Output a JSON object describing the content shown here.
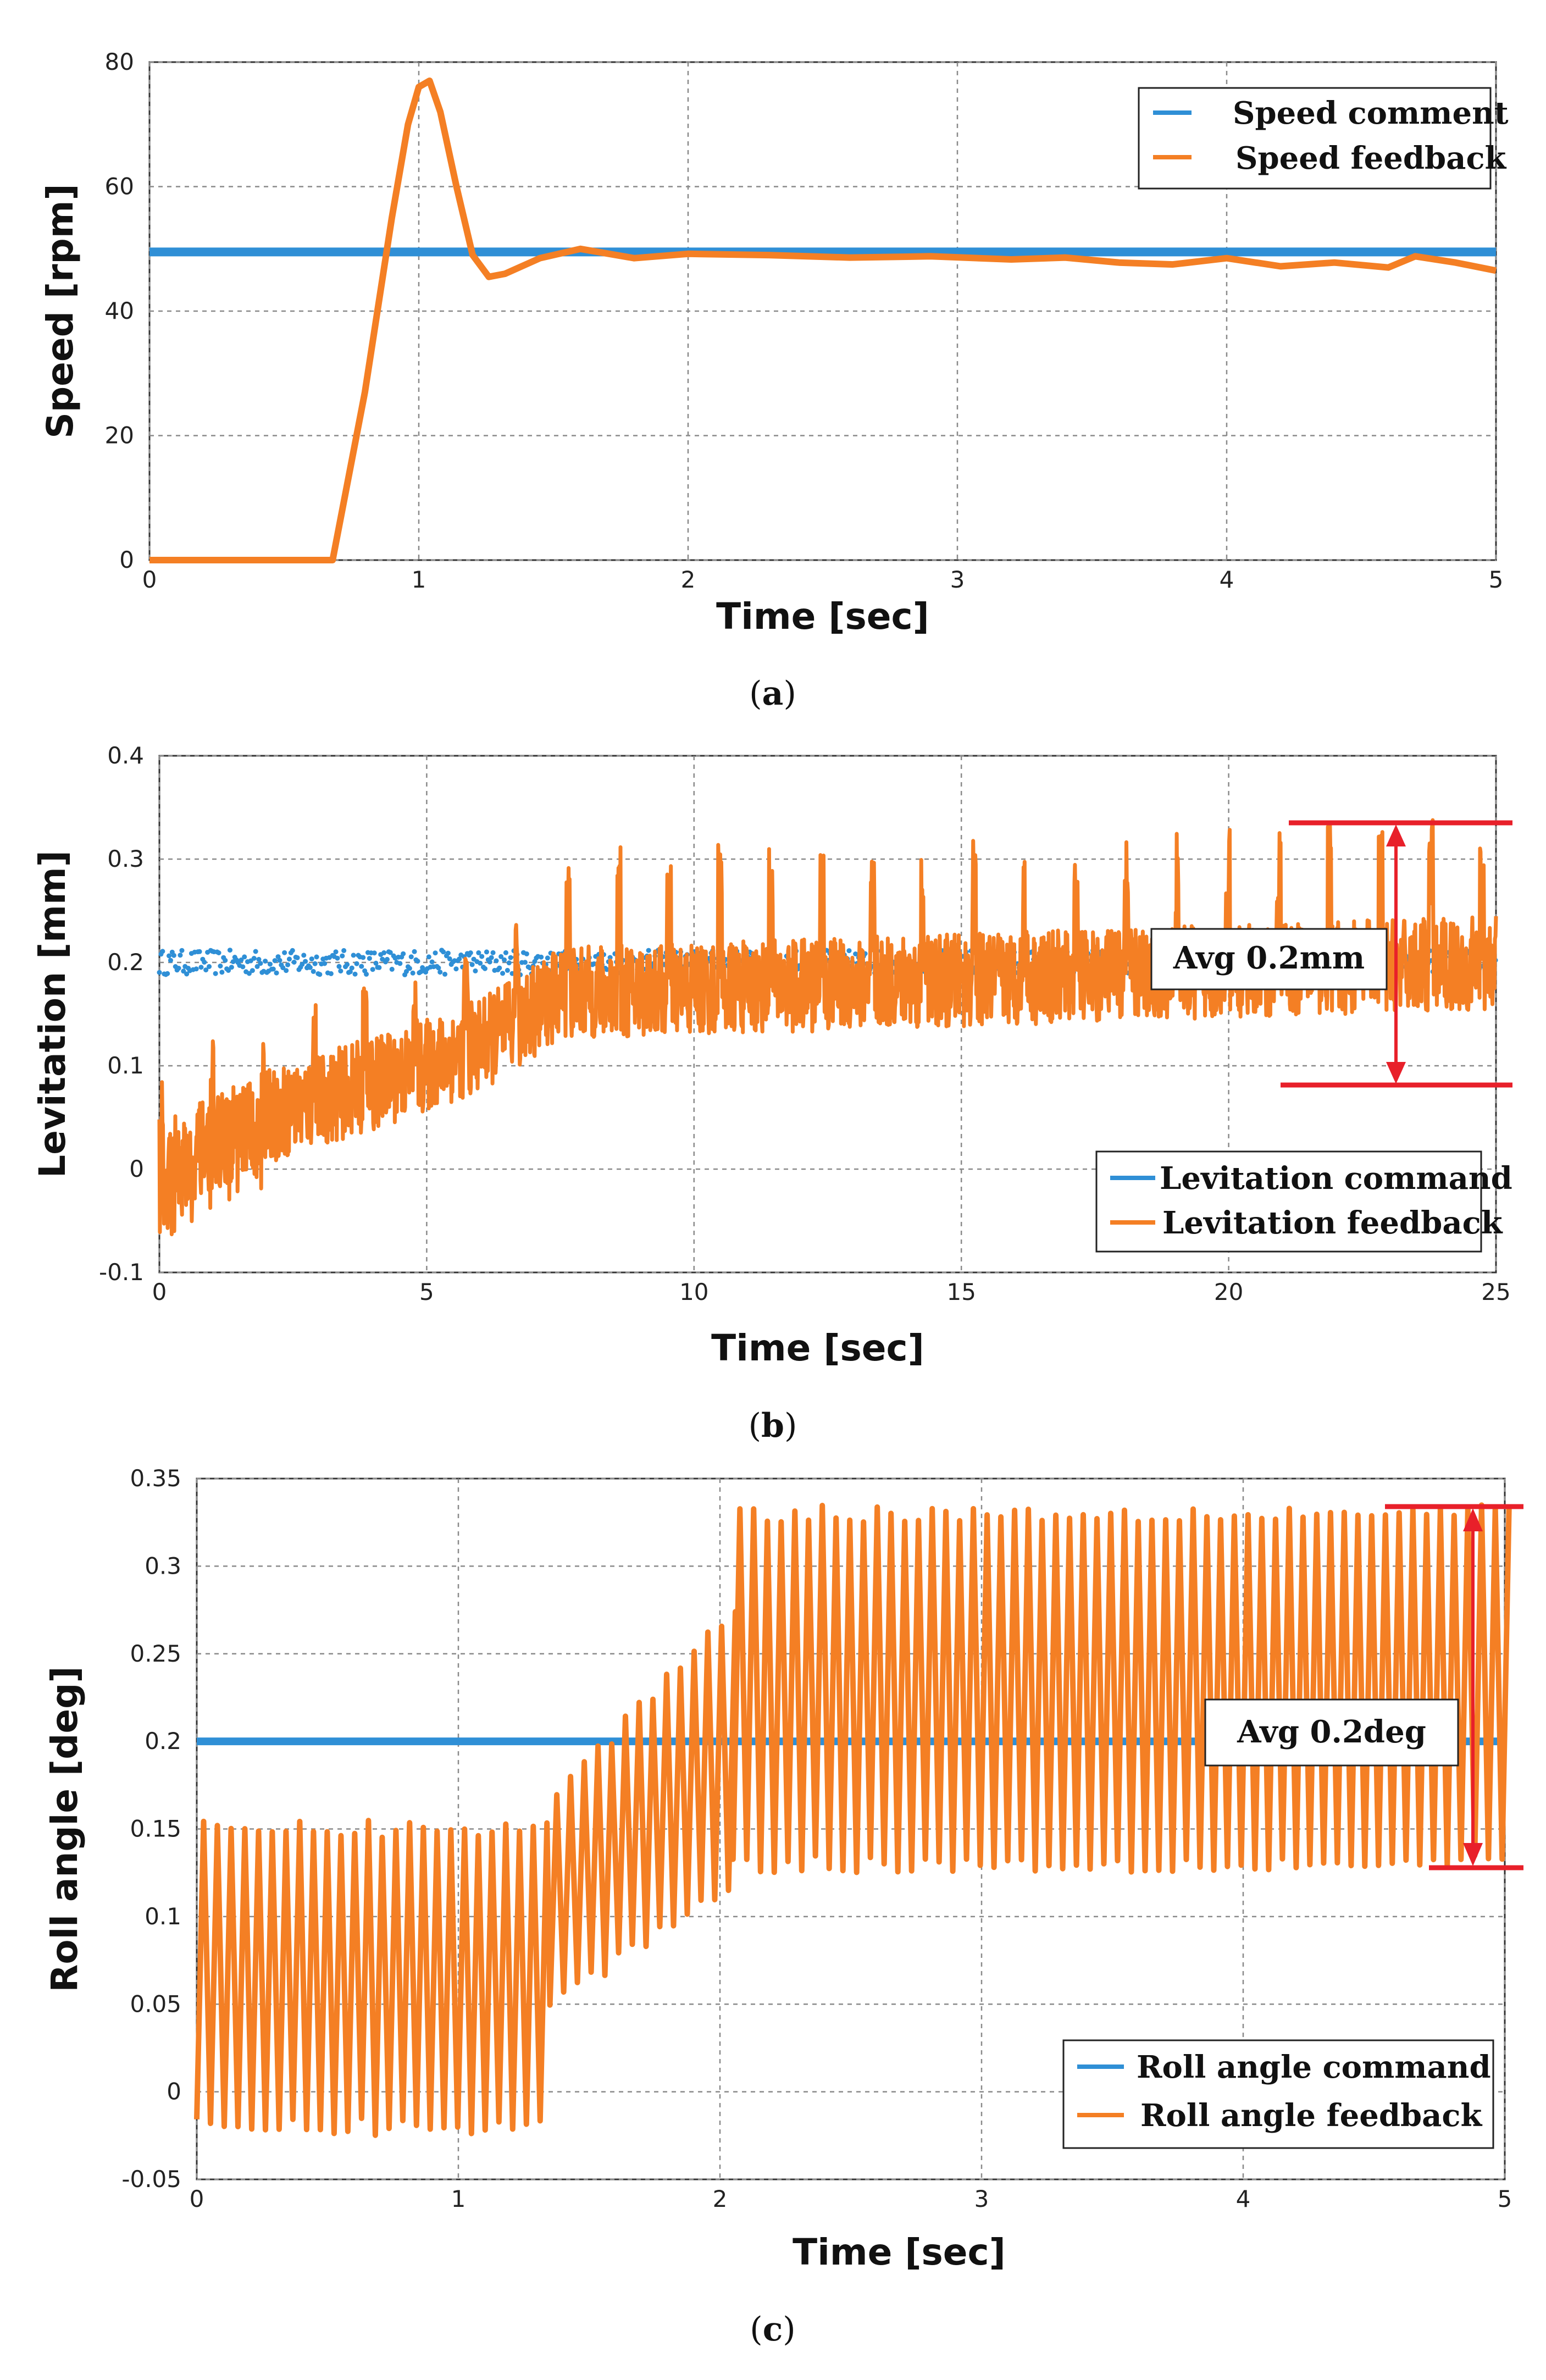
{
  "figure": {
    "colors": {
      "command": "#2f8fd6",
      "feedback": "#f47f24",
      "annotation": "#e8202a",
      "grid": "#8a8a8a"
    }
  },
  "chart_data": [
    {
      "type": "line",
      "panel_label": "a",
      "xlabel": "Time [sec]",
      "ylabel": "Speed [rpm]",
      "xlim": [
        0,
        5
      ],
      "ylim": [
        0,
        80
      ],
      "xticks": [
        "0",
        "1",
        "2",
        "3",
        "4",
        "5"
      ],
      "yticks": [
        "0",
        "20",
        "40",
        "60",
        "80"
      ],
      "legend_position": "top-right",
      "series": [
        {
          "name": "Speed comment",
          "role": "command",
          "x": [
            0,
            5
          ],
          "y": [
            49.5,
            49.5
          ]
        },
        {
          "name": "Speed feedback",
          "role": "feedback",
          "x": [
            0,
            0.68,
            0.8,
            0.9,
            0.96,
            1.0,
            1.04,
            1.08,
            1.14,
            1.2,
            1.26,
            1.32,
            1.45,
            1.6,
            1.8,
            2.0,
            2.3,
            2.6,
            2.9,
            3.2,
            3.4,
            3.6,
            3.8,
            4.0,
            4.2,
            4.4,
            4.6,
            4.7,
            4.85,
            5.0
          ],
          "y": [
            0,
            0,
            27,
            55,
            70,
            76,
            77,
            72,
            60,
            49,
            45.5,
            46,
            48.5,
            50,
            48.5,
            49.2,
            49,
            48.6,
            48.8,
            48.3,
            48.6,
            47.8,
            47.5,
            48.5,
            47.2,
            47.8,
            47,
            48.8,
            47.8,
            46.5
          ]
        }
      ]
    },
    {
      "type": "scatter",
      "panel_label": "b",
      "xlabel": "Time [sec]",
      "ylabel": "Levitation [mm]",
      "xlim": [
        0,
        25
      ],
      "ylim": [
        -0.1,
        0.4
      ],
      "xticks": [
        "0",
        "5",
        "10",
        "15",
        "20",
        "25"
      ],
      "yticks": [
        "-0.1",
        "0",
        "0.1",
        "0.2",
        "0.3",
        "0.4"
      ],
      "legend_position": "bottom-right",
      "series": [
        {
          "name": "Levitation command",
          "role": "command",
          "x_range": [
            0,
            25
          ],
          "center": 0.2,
          "spread": 0.012
        },
        {
          "name": "Levitation feedback",
          "role": "feedback",
          "x_range": [
            0,
            25
          ],
          "trend": {
            "x": [
              0,
              2,
              5,
              6,
              7.5,
              25
            ],
            "y": [
              0.0,
              0.05,
              0.1,
              0.12,
              0.17,
              0.2
            ]
          },
          "spikes_top": 0.32,
          "spikes_bottom": 0.09
        }
      ],
      "annotations": [
        {
          "text": "Avg 0.2mm",
          "y_top": 0.335,
          "y_bottom": 0.08,
          "x_range": [
            21,
            25
          ]
        }
      ]
    },
    {
      "type": "line",
      "panel_label": "c",
      "xlabel": "Time [sec]",
      "ylabel": "Roll angle [deg]",
      "xlim": [
        0,
        5
      ],
      "ylim": [
        -0.05,
        0.35
      ],
      "xticks": [
        "0",
        "1",
        "2",
        "3",
        "4",
        "5"
      ],
      "yticks": [
        "-0.05",
        "0",
        "0.05",
        "0.1",
        "0.15",
        "0.2",
        "0.25",
        "0.3",
        "0.35"
      ],
      "legend_position": "bottom-right",
      "series": [
        {
          "name": "Roll angle command",
          "role": "command",
          "x": [
            0,
            5
          ],
          "y": [
            0.2,
            0.2
          ]
        },
        {
          "name": "Roll angle feedback",
          "role": "feedback",
          "segments": [
            {
              "x_range": [
                0,
                1.35
              ],
              "low": -0.02,
              "high": 0.15
            },
            {
              "x_range": [
                1.35,
                2.05
              ],
              "low": [
                0.05,
                0.12
              ],
              "high": [
                0.17,
                0.28
              ]
            },
            {
              "x_range": [
                2.05,
                5.0
              ],
              "low": 0.13,
              "high": 0.33
            }
          ]
        }
      ],
      "annotations": [
        {
          "text": "Avg 0.2deg",
          "y_top": 0.33,
          "y_bottom": 0.124,
          "x_range": [
            4.6,
            5.1
          ]
        }
      ]
    }
  ]
}
